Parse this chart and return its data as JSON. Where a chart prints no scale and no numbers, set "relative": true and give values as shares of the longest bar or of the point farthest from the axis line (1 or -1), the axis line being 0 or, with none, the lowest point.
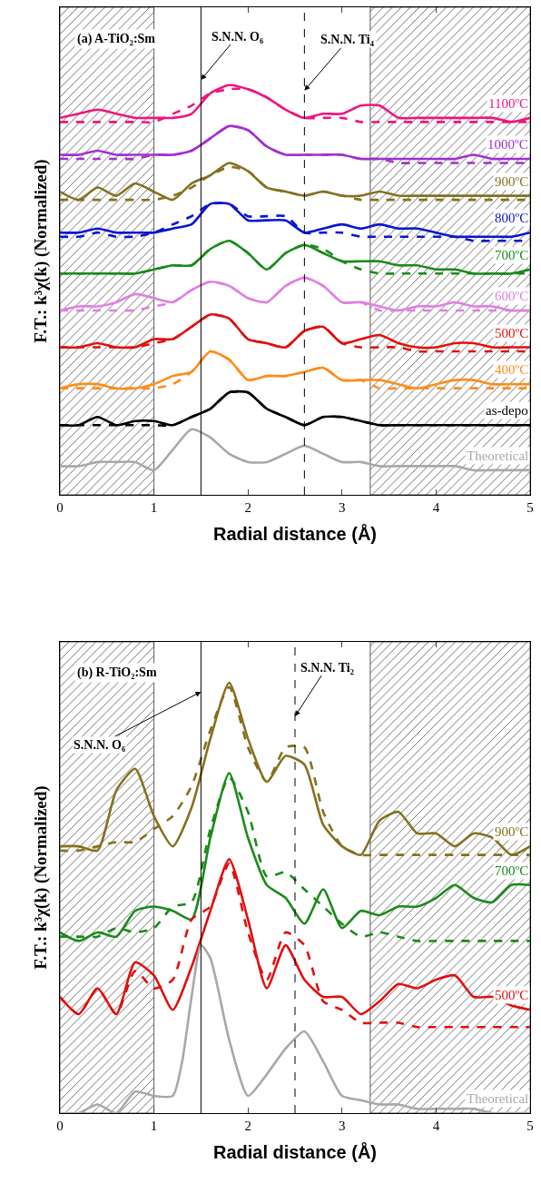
{
  "chart_data": [
    {
      "type": "line",
      "title": "(a) A-TiO₂:Sm",
      "xlabel": "Radial distance (Å)",
      "ylabel": "F.T.: k³χ(k) (Normalized)",
      "relative": true,
      "xlim": [
        0,
        5
      ],
      "xticks": [
        0,
        1,
        2,
        3,
        4,
        5
      ],
      "x": [
        0,
        0.2,
        0.4,
        0.6,
        0.8,
        1.0,
        1.2,
        1.4,
        1.6,
        1.8,
        2.0,
        2.2,
        2.4,
        2.6,
        2.8,
        3.0,
        3.2,
        3.4,
        3.6,
        3.8,
        4.0,
        4.2,
        4.4,
        4.6,
        4.8,
        5.0
      ],
      "bands": [
        {
          "axis": "x",
          "from": 0,
          "to": 1,
          "color": "#555555"
        },
        {
          "axis": "x",
          "from": 3.3,
          "to": 5,
          "color": "#555555"
        }
      ],
      "ref_lines": [
        {
          "axis": "x",
          "value": 1.5,
          "label": "S.N.N. O₆",
          "line_style": "solid",
          "color": "#000000"
        },
        {
          "axis": "x",
          "value": 2.6,
          "label": "S.N.N. Ti₄",
          "line_style": "dashed",
          "color": "#000000"
        }
      ],
      "series": [
        {
          "name": "1100ºC",
          "color": "#f0147f",
          "values": [
            0.92,
            0.93,
            0.94,
            0.93,
            0.92,
            0.92,
            0.92,
            0.93,
            0.98,
            1.0,
            0.99,
            0.97,
            0.94,
            0.92,
            0.93,
            0.93,
            0.95,
            0.95,
            0.92,
            0.92,
            0.92,
            0.92,
            0.92,
            0.92,
            0.91,
            0.92
          ]
        },
        {
          "color": "#f0147f",
          "line_style": "dashed",
          "values": [
            0.91,
            0.91,
            0.91,
            0.91,
            0.91,
            0.91,
            0.93,
            0.95,
            0.98,
            0.99,
            0.99,
            0.97,
            0.94,
            0.92,
            0.92,
            0.92,
            0.91,
            0.91,
            0.91,
            0.91,
            0.91,
            0.91,
            0.91,
            0.91,
            0.91,
            0.91
          ]
        },
        {
          "name": "1000ºC",
          "color": "#a030d0",
          "values": [
            0.83,
            0.83,
            0.84,
            0.83,
            0.83,
            0.83,
            0.83,
            0.84,
            0.87,
            0.9,
            0.89,
            0.85,
            0.83,
            0.83,
            0.83,
            0.83,
            0.82,
            0.82,
            0.82,
            0.82,
            0.82,
            0.82,
            0.83,
            0.82,
            0.82,
            0.82
          ]
        },
        {
          "color": "#a030d0",
          "line_style": "dashed",
          "values": [
            0.82,
            0.82,
            0.82,
            0.82,
            0.82,
            0.83,
            0.83,
            0.84,
            0.87,
            0.9,
            0.89,
            0.85,
            0.83,
            0.83,
            0.83,
            0.83,
            0.82,
            0.82,
            0.81,
            0.81,
            0.81,
            0.81,
            0.81,
            0.81,
            0.81,
            0.81
          ]
        },
        {
          "name": "900ºC",
          "color": "#857020",
          "values": [
            0.74,
            0.72,
            0.75,
            0.73,
            0.76,
            0.74,
            0.72,
            0.76,
            0.78,
            0.81,
            0.79,
            0.75,
            0.74,
            0.73,
            0.74,
            0.73,
            0.73,
            0.74,
            0.73,
            0.73,
            0.73,
            0.73,
            0.73,
            0.73,
            0.73,
            0.73
          ]
        },
        {
          "color": "#857020",
          "line_style": "dashed",
          "values": [
            0.72,
            0.72,
            0.72,
            0.72,
            0.72,
            0.72,
            0.73,
            0.75,
            0.78,
            0.8,
            0.79,
            0.75,
            0.74,
            0.73,
            0.74,
            0.73,
            0.72,
            0.72,
            0.72,
            0.72,
            0.72,
            0.72,
            0.72,
            0.72,
            0.72,
            0.72
          ]
        },
        {
          "name": "800ºC",
          "color": "#0a14d0",
          "values": [
            0.64,
            0.64,
            0.65,
            0.64,
            0.64,
            0.64,
            0.65,
            0.66,
            0.71,
            0.71,
            0.67,
            0.67,
            0.67,
            0.64,
            0.65,
            0.66,
            0.65,
            0.66,
            0.65,
            0.65,
            0.64,
            0.63,
            0.63,
            0.63,
            0.63,
            0.64
          ]
        },
        {
          "color": "#0a14d0",
          "line_style": "dashed",
          "values": [
            0.63,
            0.63,
            0.64,
            0.63,
            0.63,
            0.64,
            0.66,
            0.68,
            0.71,
            0.71,
            0.68,
            0.68,
            0.68,
            0.64,
            0.64,
            0.64,
            0.63,
            0.63,
            0.63,
            0.63,
            0.63,
            0.63,
            0.62,
            0.62,
            0.62,
            0.62
          ]
        },
        {
          "name": "700ºC",
          "color": "#1a8a1a",
          "values": [
            0.54,
            0.54,
            0.54,
            0.54,
            0.54,
            0.55,
            0.56,
            0.56,
            0.6,
            0.62,
            0.59,
            0.55,
            0.59,
            0.61,
            0.59,
            0.57,
            0.57,
            0.57,
            0.56,
            0.56,
            0.55,
            0.55,
            0.54,
            0.54,
            0.54,
            0.55
          ]
        },
        {
          "color": "#1a8a1a",
          "line_style": "dashed",
          "values": [
            0.54,
            0.54,
            0.54,
            0.54,
            0.54,
            0.55,
            0.56,
            0.56,
            0.6,
            0.62,
            0.59,
            0.55,
            0.59,
            0.61,
            0.6,
            0.57,
            0.55,
            0.54,
            0.54,
            0.54,
            0.54,
            0.54,
            0.54,
            0.54,
            0.54,
            0.54
          ]
        },
        {
          "name": "600ºC",
          "color": "#e080e0",
          "values": [
            0.45,
            0.46,
            0.46,
            0.47,
            0.49,
            0.48,
            0.47,
            0.5,
            0.52,
            0.51,
            0.48,
            0.47,
            0.51,
            0.53,
            0.51,
            0.47,
            0.47,
            0.46,
            0.45,
            0.46,
            0.46,
            0.47,
            0.46,
            0.46,
            0.45,
            0.45
          ]
        },
        {
          "color": "#e080e0",
          "line_style": "dashed",
          "values": [
            0.45,
            0.45,
            0.45,
            0.45,
            0.45,
            0.46,
            0.47,
            0.5,
            0.52,
            0.51,
            0.48,
            0.47,
            0.51,
            0.53,
            0.51,
            0.47,
            0.47,
            0.45,
            0.45,
            0.45,
            0.45,
            0.45,
            0.45,
            0.45,
            0.45,
            0.45
          ]
        },
        {
          "name": "500ºC",
          "color": "#e01010",
          "values": [
            0.36,
            0.36,
            0.37,
            0.36,
            0.36,
            0.38,
            0.38,
            0.41,
            0.44,
            0.43,
            0.38,
            0.37,
            0.36,
            0.4,
            0.41,
            0.37,
            0.38,
            0.39,
            0.37,
            0.36,
            0.36,
            0.37,
            0.37,
            0.36,
            0.36,
            0.36
          ]
        },
        {
          "color": "#e01010",
          "line_style": "dashed",
          "values": [
            0.36,
            0.36,
            0.36,
            0.36,
            0.36,
            0.37,
            0.38,
            0.41,
            0.44,
            0.43,
            0.38,
            0.37,
            0.36,
            0.4,
            0.41,
            0.37,
            0.36,
            0.36,
            0.36,
            0.35,
            0.35,
            0.35,
            0.35,
            0.35,
            0.35,
            0.35
          ]
        },
        {
          "name": "400ºC",
          "color": "#ff8c1a",
          "values": [
            0.26,
            0.27,
            0.27,
            0.26,
            0.26,
            0.27,
            0.29,
            0.3,
            0.35,
            0.33,
            0.28,
            0.29,
            0.29,
            0.3,
            0.31,
            0.28,
            0.28,
            0.28,
            0.27,
            0.26,
            0.27,
            0.28,
            0.28,
            0.27,
            0.27,
            0.27
          ]
        },
        {
          "color": "#ff8c1a",
          "line_style": "dashed",
          "values": [
            0.26,
            0.26,
            0.26,
            0.26,
            0.26,
            0.26,
            0.27,
            0.3,
            0.35,
            0.33,
            0.28,
            0.29,
            0.29,
            0.3,
            0.31,
            0.28,
            0.28,
            0.26,
            0.26,
            0.26,
            0.26,
            0.26,
            0.26,
            0.26,
            0.26,
            0.26
          ]
        },
        {
          "name": "as-depo",
          "color": "#000000",
          "values": [
            0.17,
            0.17,
            0.19,
            0.17,
            0.18,
            0.18,
            0.17,
            0.19,
            0.21,
            0.25,
            0.25,
            0.21,
            0.19,
            0.17,
            0.19,
            0.19,
            0.18,
            0.17,
            0.17,
            0.17,
            0.17,
            0.17,
            0.17,
            0.17,
            0.17,
            0.17
          ]
        },
        {
          "color": "#000000",
          "line_style": "dashed",
          "values": [
            0.17,
            0.17,
            0.17,
            0.17,
            0.17,
            0.17,
            0.17,
            0.19,
            0.21,
            0.25,
            0.25,
            0.21,
            0.19,
            0.17,
            0.19,
            0.19,
            0.18,
            0.17,
            0.17,
            0.17,
            0.17,
            0.17,
            0.17,
            0.17,
            0.17,
            0.17
          ]
        },
        {
          "name": "Theoretical",
          "color": "#a8a8a8",
          "values": [
            0.07,
            0.07,
            0.08,
            0.08,
            0.08,
            0.06,
            0.11,
            0.16,
            0.14,
            0.1,
            0.08,
            0.08,
            0.1,
            0.12,
            0.1,
            0.08,
            0.08,
            0.07,
            0.07,
            0.07,
            0.07,
            0.07,
            0.06,
            0.06,
            0.06,
            0.06
          ]
        }
      ]
    },
    {
      "type": "line",
      "title": "(b) R-TiO₂:Sm",
      "xlabel": "Radial distance (Å)",
      "ylabel": "F.T.: k³χ(k) (Normalized)",
      "relative": true,
      "xlim": [
        0,
        5
      ],
      "xticks": [
        0,
        1,
        2,
        3,
        4,
        5
      ],
      "x": [
        0,
        0.2,
        0.4,
        0.6,
        0.8,
        1.0,
        1.2,
        1.4,
        1.6,
        1.8,
        2.0,
        2.2,
        2.4,
        2.6,
        2.8,
        3.0,
        3.2,
        3.4,
        3.6,
        3.8,
        4.0,
        4.2,
        4.4,
        4.6,
        4.8,
        5.0
      ],
      "bands": [
        {
          "axis": "x",
          "from": 0,
          "to": 1,
          "color": "#555555"
        },
        {
          "axis": "x",
          "from": 3.3,
          "to": 5,
          "color": "#555555"
        }
      ],
      "ref_lines": [
        {
          "axis": "x",
          "value": 1.5,
          "label": "S.N.N. O₆",
          "line_style": "solid",
          "color": "#000000"
        },
        {
          "axis": "x",
          "value": 2.5,
          "label": "S.N.N. Ti₂",
          "line_style": "dashed",
          "color": "#000000"
        }
      ],
      "series": [
        {
          "name": "900ºC",
          "color": "#857020",
          "values": [
            0.62,
            0.62,
            0.61,
            0.75,
            0.8,
            0.69,
            0.62,
            0.71,
            0.87,
            1.0,
            0.87,
            0.77,
            0.83,
            0.81,
            0.67,
            0.62,
            0.6,
            0.68,
            0.7,
            0.65,
            0.65,
            0.62,
            0.65,
            0.64,
            0.6,
            0.62
          ]
        },
        {
          "color": "#857020",
          "line_style": "dashed",
          "values": [
            0.61,
            0.61,
            0.62,
            0.63,
            0.63,
            0.66,
            0.69,
            0.76,
            0.89,
            0.99,
            0.85,
            0.77,
            0.85,
            0.85,
            0.7,
            0.62,
            0.6,
            0.6,
            0.6,
            0.6,
            0.6,
            0.6,
            0.6,
            0.6,
            0.6,
            0.6
          ]
        },
        {
          "name": "700ºC",
          "color": "#1a8a1a",
          "values": [
            0.42,
            0.4,
            0.42,
            0.41,
            0.47,
            0.48,
            0.47,
            0.45,
            0.64,
            0.79,
            0.64,
            0.53,
            0.5,
            0.44,
            0.52,
            0.43,
            0.47,
            0.46,
            0.48,
            0.48,
            0.5,
            0.53,
            0.5,
            0.49,
            0.53,
            0.53
          ]
        },
        {
          "color": "#1a8a1a",
          "line_style": "dashed",
          "values": [
            0.41,
            0.41,
            0.41,
            0.43,
            0.42,
            0.43,
            0.48,
            0.49,
            0.66,
            0.78,
            0.7,
            0.55,
            0.56,
            0.52,
            0.48,
            0.44,
            0.41,
            0.42,
            0.41,
            0.4,
            0.4,
            0.4,
            0.4,
            0.4,
            0.4,
            0.4
          ]
        },
        {
          "name": "500ºC",
          "color": "#e01010",
          "values": [
            0.27,
            0.23,
            0.29,
            0.23,
            0.35,
            0.32,
            0.24,
            0.34,
            0.47,
            0.59,
            0.45,
            0.29,
            0.39,
            0.31,
            0.27,
            0.27,
            0.23,
            0.26,
            0.3,
            0.29,
            0.31,
            0.32,
            0.27,
            0.27,
            0.25,
            0.24
          ]
        },
        {
          "color": "#e01010",
          "line_style": "dashed",
          "values": [
            0.27,
            0.23,
            0.29,
            0.23,
            0.33,
            0.29,
            0.31,
            0.45,
            0.48,
            0.58,
            0.42,
            0.31,
            0.42,
            0.39,
            0.26,
            0.24,
            0.21,
            0.21,
            0.21,
            0.2,
            0.2,
            0.2,
            0.2,
            0.2,
            0.2,
            0.2
          ]
        },
        {
          "name": "Theoretical",
          "color": "#a8a8a8",
          "x": [
            0,
            0.2,
            0.4,
            0.6,
            0.8,
            1.0,
            1.2,
            1.3,
            1.4,
            1.5,
            1.6,
            1.8,
            2.0,
            2.2,
            2.4,
            2.6,
            2.8,
            3.0,
            3.2,
            3.4,
            3.6,
            3.8,
            4.0,
            4.2,
            4.4,
            4.6,
            4.8,
            5.0
          ],
          "values": [
            0.0,
            0.0,
            0.02,
            0.0,
            0.05,
            0.04,
            0.04,
            0.12,
            0.27,
            0.39,
            0.36,
            0.17,
            0.04,
            0.09,
            0.15,
            0.19,
            0.12,
            0.04,
            0.03,
            0.02,
            0.02,
            0.01,
            0.01,
            0.01,
            0.01,
            0.0,
            0.0,
            0.0
          ]
        }
      ]
    }
  ]
}
